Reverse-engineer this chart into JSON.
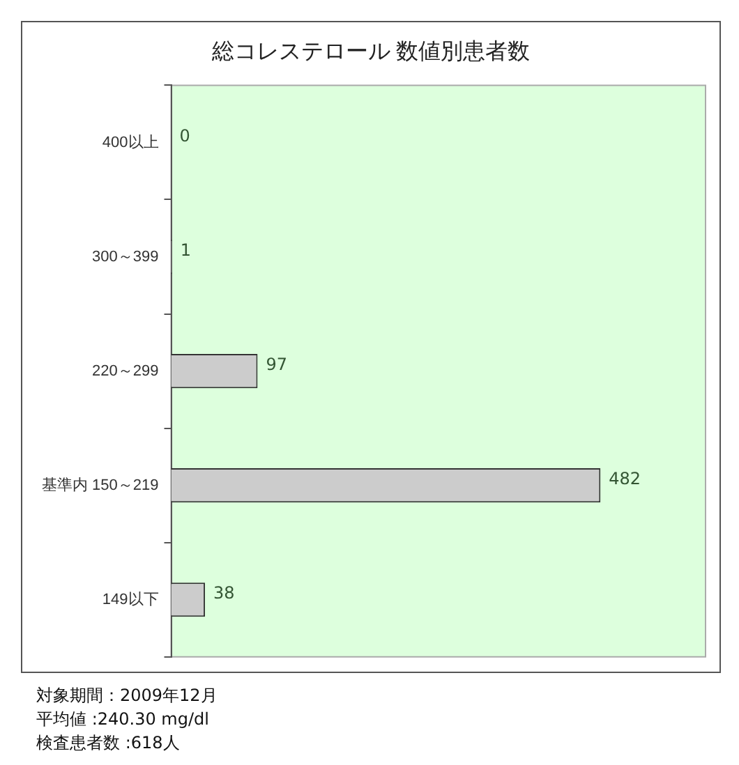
{
  "chart_data": {
    "type": "bar",
    "orientation": "horizontal",
    "title": "総コレステロール 数値別患者数",
    "categories": [
      "400以上",
      "300～399",
      "220～299",
      "基準内 150～219",
      "149以下"
    ],
    "values": [
      0,
      1,
      97,
      482,
      38
    ],
    "color": "#cccccc",
    "data_labels": true,
    "legend": false,
    "annotations": [
      "対象期間：2009年12月",
      "平均値 :240.30 mg/dl",
      "検査患者数 :618人"
    ]
  }
}
